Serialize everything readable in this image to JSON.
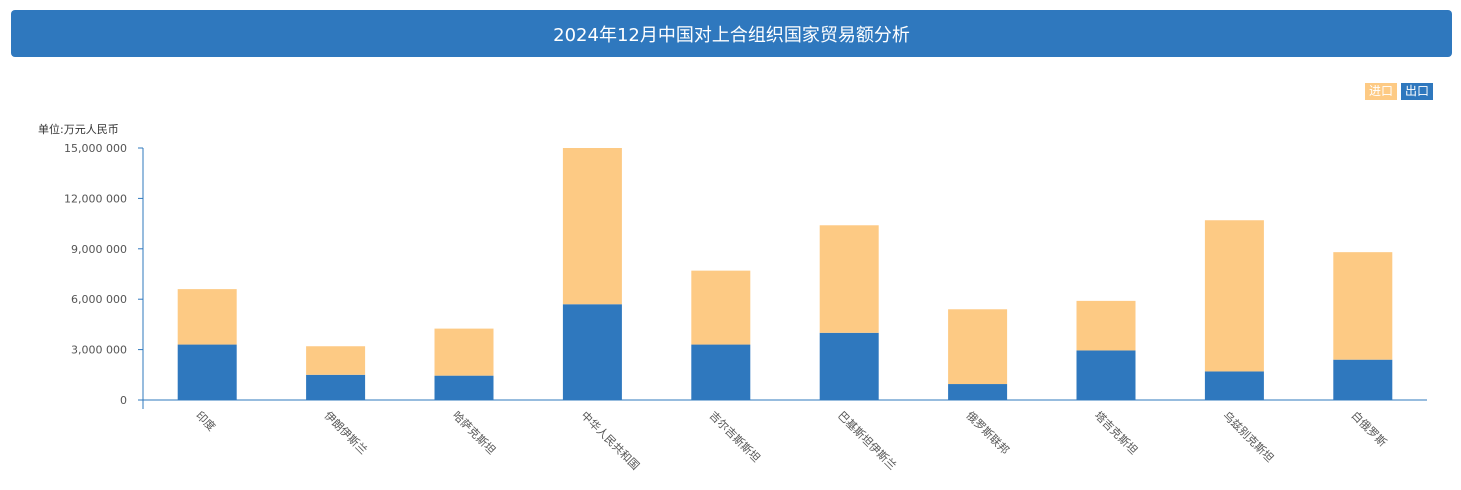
{
  "header": {
    "title": "2024年12月中国对上合组织国家贸易额分析"
  },
  "legend": {
    "items": [
      {
        "label": "进口",
        "color": "#fdca84"
      },
      {
        "label": "出口",
        "color": "#2f78be"
      }
    ]
  },
  "chart_data": {
    "type": "bar",
    "stacked": true,
    "unit_label": "单位:万元人民币",
    "categories": [
      "印度",
      "伊朗伊斯兰",
      "哈萨克斯坦",
      "中华人民共和国",
      "吉尔吉斯斯坦",
      "巴基斯坦伊斯兰",
      "俄罗斯联邦",
      "塔吉克斯坦",
      "乌兹别克斯坦",
      "白俄罗斯"
    ],
    "series": [
      {
        "name": "出口",
        "color": "#2f78be",
        "values": [
          3300000,
          1500000,
          1450000,
          5700000,
          3300000,
          4000000,
          950000,
          2950000,
          1700000,
          2400000
        ]
      },
      {
        "name": "进口",
        "color": "#fdca84",
        "values": [
          3300000,
          1700000,
          2800000,
          9300000,
          4400000,
          6400000,
          4450000,
          2950000,
          9000000,
          6400000
        ]
      }
    ],
    "ylim": [
      0,
      15000000
    ],
    "yticks": [
      0,
      3000000,
      6000000,
      9000000,
      12000000,
      15000000
    ],
    "ytick_labels": [
      "0",
      "3,000 000",
      "6,000 000",
      "9,000 000",
      "12,000 000",
      "15,000 000"
    ],
    "legend_position": "top-right"
  }
}
